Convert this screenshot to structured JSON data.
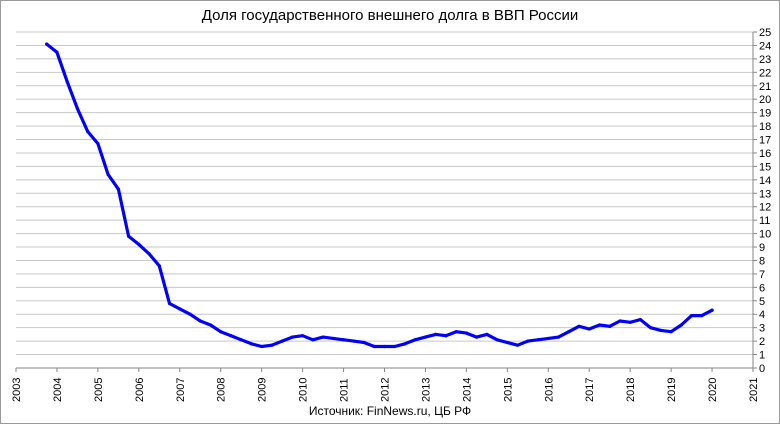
{
  "chart_data": {
    "type": "line",
    "title": "Доля государственного внешнего долга в ВВП России",
    "source": "Источник: FinNews.ru, ЦБ РФ",
    "xlabel": "",
    "ylabel": "",
    "xlim": [
      2003,
      2021
    ],
    "ylim": [
      0,
      25
    ],
    "x_ticks": [
      "2003",
      "2004",
      "2005",
      "2006",
      "2007",
      "2008",
      "2009",
      "2010",
      "2011",
      "2012",
      "2013",
      "2014",
      "2015",
      "2016",
      "2017",
      "2018",
      "2019",
      "2020",
      "2021"
    ],
    "y_ticks": [
      "0",
      "1",
      "2",
      "3",
      "4",
      "5",
      "6",
      "7",
      "8",
      "9",
      "10",
      "11",
      "12",
      "13",
      "14",
      "15",
      "16",
      "17",
      "18",
      "19",
      "20",
      "21",
      "22",
      "23",
      "24",
      "25"
    ],
    "grid": "horizontal",
    "y_axis_position": "right",
    "line_color": "#0000ff",
    "series": [
      {
        "x": [
          2003.75,
          2004.0,
          2004.25,
          2004.5,
          2004.75,
          2005.0,
          2005.25,
          2005.5,
          2005.75,
          2006.0,
          2006.25,
          2006.5,
          2006.75,
          2007.0,
          2007.25,
          2007.5,
          2007.75,
          2008.0,
          2008.25,
          2008.5,
          2008.75,
          2009.0,
          2009.25,
          2009.5,
          2009.75,
          2010.0,
          2010.25,
          2010.5,
          2010.75,
          2011.0,
          2011.25,
          2011.5,
          2011.75,
          2012.0,
          2012.25,
          2012.5,
          2012.75,
          2013.0,
          2013.25,
          2013.5,
          2013.75,
          2014.0,
          2014.25,
          2014.5,
          2014.75,
          2015.0,
          2015.25,
          2015.5,
          2015.75,
          2016.0,
          2016.25,
          2016.5,
          2016.75,
          2017.0,
          2017.25,
          2017.5,
          2017.75,
          2018.0,
          2018.25,
          2018.5,
          2018.75,
          2019.0,
          2019.25,
          2019.5,
          2019.75,
          2020.0
        ],
        "y": [
          24.1,
          23.5,
          21.3,
          19.3,
          17.6,
          16.7,
          14.4,
          13.3,
          9.8,
          9.2,
          8.5,
          7.6,
          4.8,
          4.4,
          4.0,
          3.5,
          3.2,
          2.7,
          2.4,
          2.1,
          1.8,
          1.6,
          1.7,
          2.0,
          2.3,
          2.4,
          2.1,
          2.3,
          2.2,
          2.1,
          2.0,
          1.9,
          1.6,
          1.6,
          1.6,
          1.8,
          2.1,
          2.3,
          2.5,
          2.4,
          2.7,
          2.6,
          2.3,
          2.5,
          2.1,
          1.9,
          1.7,
          2.0,
          2.1,
          2.2,
          2.3,
          2.7,
          3.1,
          2.9,
          3.2,
          3.1,
          3.5,
          3.4,
          3.6,
          3.0,
          2.8,
          2.7,
          3.2,
          3.9,
          3.9,
          4.3
        ]
      }
    ]
  }
}
